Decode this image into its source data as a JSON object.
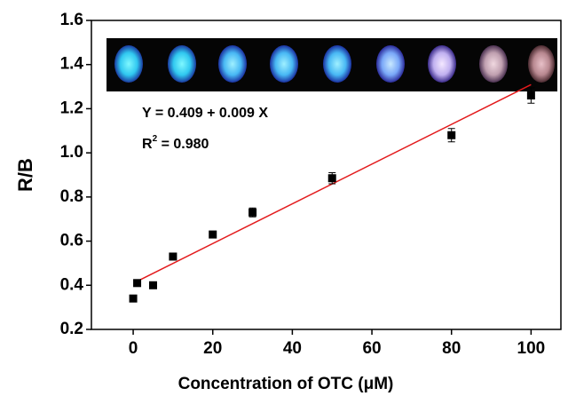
{
  "chart_data": {
    "type": "scatter",
    "x_label": "Concentration of OTC (μM)",
    "y_label": "R/B",
    "x": [
      0,
      1,
      5,
      10,
      20,
      30,
      50,
      80,
      100
    ],
    "series": [
      {
        "color": "#000000",
        "values": [
          0.34,
          0.41,
          0.4,
          0.53,
          0.63,
          0.73,
          0.885,
          1.08,
          1.26
        ],
        "errors": [
          0.005,
          0.01,
          0.005,
          0.01,
          0.015,
          0.02,
          0.025,
          0.03,
          0.035
        ]
      }
    ],
    "fit_line": {
      "color": "#e31a1c",
      "x": [
        1,
        100
      ],
      "y": [
        0.418,
        1.309
      ]
    },
    "equation": "Y = 0.409 + 0.009 X",
    "r_squared": {
      "symbol": "R",
      "exponent": "2",
      "text": " = 0.980"
    },
    "xlim": [
      -10.5,
      107.5
    ],
    "ylim": [
      0.2,
      1.6
    ],
    "xticks": [
      0,
      20,
      40,
      60,
      80,
      100
    ],
    "yticks": [
      0.2,
      0.4,
      0.6,
      0.8,
      {
        "value": 1,
        "label": "1.0"
      },
      1.2,
      1.4,
      1.6
    ]
  }
}
